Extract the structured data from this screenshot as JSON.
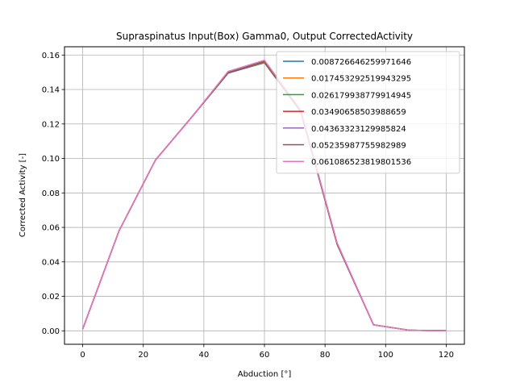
{
  "chart_data": {
    "type": "line",
    "title": "Supraspinatus Input(Box) Gamma0, Output CorrectedActivity",
    "xlabel": "Abduction [°]",
    "ylabel": "Corrected Activity [-]",
    "xlim": [
      -6,
      126
    ],
    "ylim": [
      -0.0078,
      0.1648
    ],
    "xticks": [
      0,
      20,
      40,
      60,
      80,
      100,
      120
    ],
    "yticks": [
      0.0,
      0.02,
      0.04,
      0.06,
      0.08,
      0.1,
      0.12,
      0.14,
      0.16
    ],
    "xtick_labels": [
      "0",
      "20",
      "40",
      "60",
      "80",
      "100",
      "120"
    ],
    "ytick_labels": [
      "0.00",
      "0.02",
      "0.04",
      "0.06",
      "0.08",
      "0.10",
      "0.12",
      "0.14",
      "0.16"
    ],
    "grid": true,
    "legend_position": "top-right",
    "x": [
      0,
      12,
      24,
      36,
      48,
      60,
      72,
      84,
      96,
      108,
      120
    ],
    "series": [
      {
        "name": "0.008726646259971646",
        "color": "#1f77b4",
        "values": [
          0.001,
          0.058,
          0.099,
          0.124,
          0.1495,
          0.1555,
          0.127,
          0.05,
          0.0035,
          0.0003,
          0.0001
        ]
      },
      {
        "name": "0.017453292519943295",
        "color": "#ff7f0e",
        "values": [
          0.001,
          0.058,
          0.099,
          0.124,
          0.1497,
          0.1558,
          0.1272,
          0.0502,
          0.0035,
          0.0003,
          0.0001
        ]
      },
      {
        "name": "0.026179938779914945",
        "color": "#2ca02c",
        "values": [
          0.001,
          0.058,
          0.099,
          0.124,
          0.1499,
          0.1561,
          0.1274,
          0.0504,
          0.0035,
          0.0003,
          0.0001
        ]
      },
      {
        "name": "0.03490658503988659",
        "color": "#d62728",
        "values": [
          0.001,
          0.058,
          0.099,
          0.124,
          0.1501,
          0.1564,
          0.1276,
          0.0506,
          0.0035,
          0.0003,
          0.0001
        ]
      },
      {
        "name": "0.04363323129985824",
        "color": "#9467bd",
        "values": [
          0.001,
          0.058,
          0.099,
          0.124,
          0.1503,
          0.1567,
          0.1278,
          0.0508,
          0.0035,
          0.0003,
          0.0001
        ]
      },
      {
        "name": "0.05235987755982989",
        "color": "#8c564b",
        "values": [
          0.001,
          0.058,
          0.099,
          0.124,
          0.1496,
          0.1562,
          0.1273,
          0.0503,
          0.0035,
          0.0003,
          0.0001
        ]
      },
      {
        "name": "0.061086523819801536",
        "color": "#e377c2",
        "values": [
          0.001,
          0.058,
          0.099,
          0.124,
          0.1505,
          0.157,
          0.128,
          0.051,
          0.0035,
          0.0003,
          0.0001
        ]
      }
    ]
  }
}
